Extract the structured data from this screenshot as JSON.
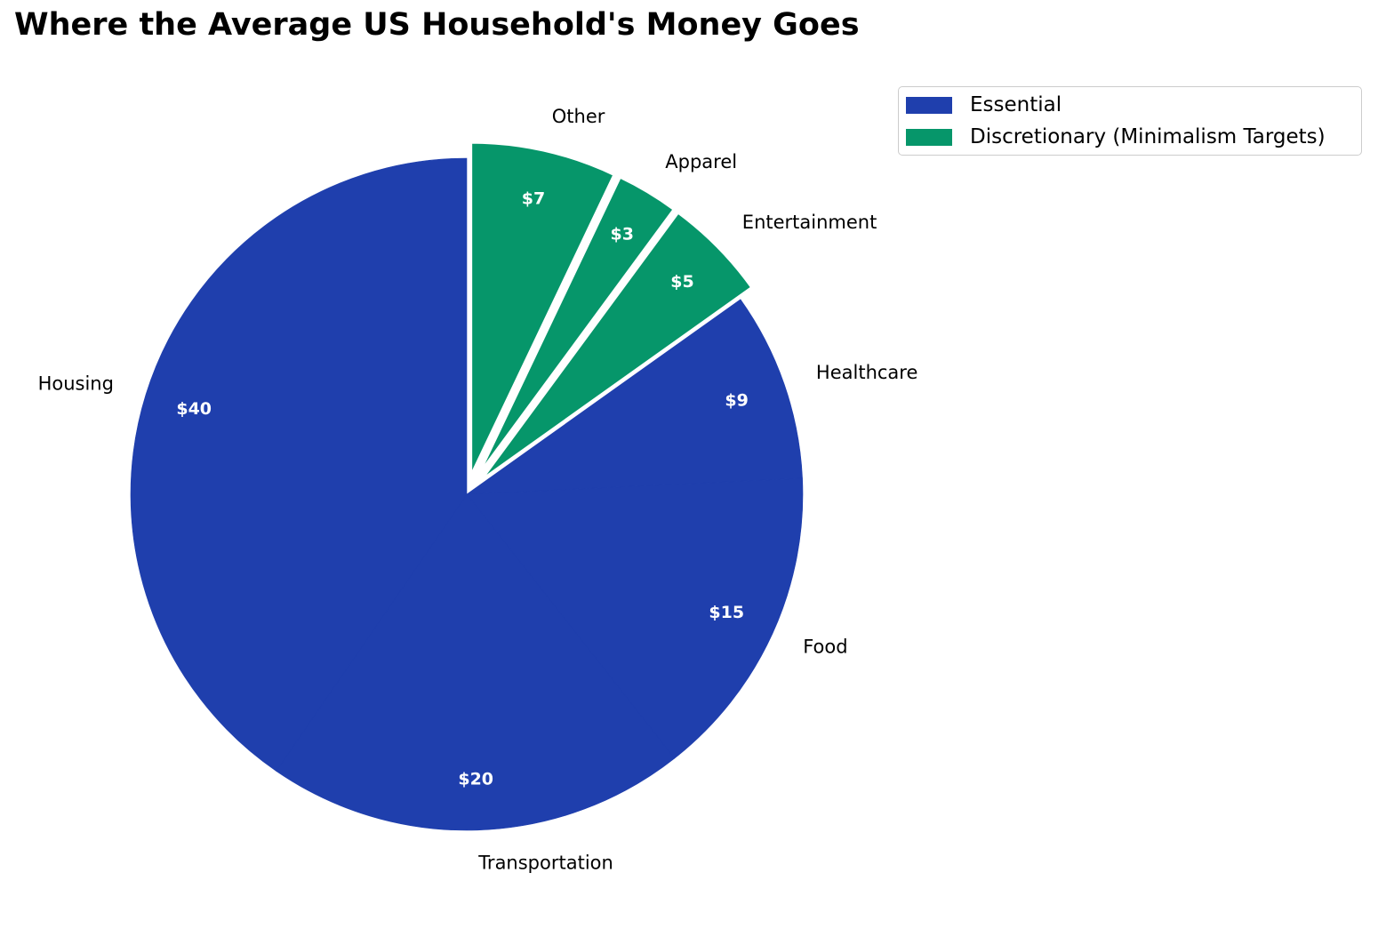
{
  "chart_data": {
    "type": "pie",
    "title": "Where the Average US Household's Money Goes",
    "start_angle_deg": 90,
    "direction": "clockwise",
    "slices": [
      {
        "label": "Other",
        "value": 7,
        "value_label": "$7",
        "group": "discretionary",
        "exploded": true
      },
      {
        "label": "Apparel",
        "value": 3,
        "value_label": "$3",
        "group": "discretionary",
        "exploded": true
      },
      {
        "label": "Entertainment",
        "value": 5,
        "value_label": "$5",
        "group": "discretionary",
        "exploded": true
      },
      {
        "label": "Healthcare",
        "value": 9,
        "value_label": "$9",
        "group": "essential",
        "exploded": false
      },
      {
        "label": "Food",
        "value": 15,
        "value_label": "$15",
        "group": "essential",
        "exploded": false
      },
      {
        "label": "Transportation",
        "value": 20,
        "value_label": "$20",
        "group": "essential",
        "exploded": false
      },
      {
        "label": "Housing",
        "value": 40,
        "value_label": "$40",
        "group": "essential",
        "exploded": false
      }
    ],
    "legend": {
      "placement": "top-right",
      "entries": [
        {
          "key": "essential",
          "label": "Essential",
          "color": "#1f3fad"
        },
        {
          "key": "discretionary",
          "label": "Discretionary (Minimalism Targets)",
          "color": "#06966a"
        }
      ]
    }
  }
}
